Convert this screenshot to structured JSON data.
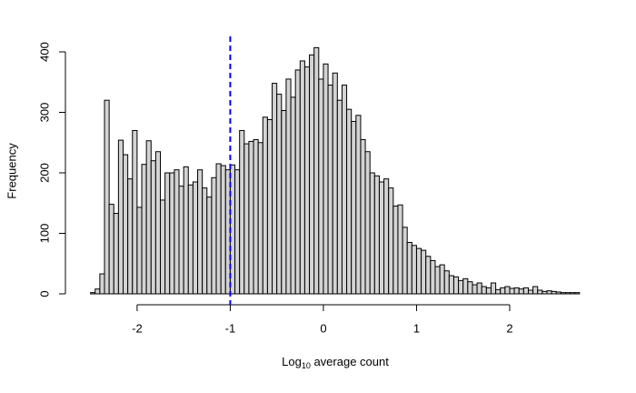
{
  "chart_data": {
    "type": "histogram",
    "xlabel": [
      "Log",
      "10",
      " average count"
    ],
    "ylabel": "Frequency",
    "bins": [
      -2.5,
      -2.45,
      -2.4,
      -2.35,
      -2.3,
      -2.25,
      -2.2,
      -2.15,
      -2.1,
      -2.05,
      -2,
      -1.95,
      -1.9,
      -1.85,
      -1.8,
      -1.75,
      -1.7,
      -1.65,
      -1.6,
      -1.55,
      -1.5,
      -1.45,
      -1.4,
      -1.35,
      -1.3,
      -1.25,
      -1.2,
      -1.15,
      -1.1,
      -1.05,
      -1,
      -0.95,
      -0.9,
      -0.85,
      -0.8,
      -0.75,
      -0.7,
      -0.65,
      -0.6,
      -0.55,
      -0.5,
      -0.45,
      -0.4,
      -0.35,
      -0.3,
      -0.25,
      -0.2,
      -0.15,
      -0.1,
      -0.05,
      0,
      0.05,
      0.1,
      0.15,
      0.2,
      0.25,
      0.3,
      0.35,
      0.4,
      0.45,
      0.5,
      0.55,
      0.6,
      0.65,
      0.7,
      0.75,
      0.8,
      0.85,
      0.9,
      0.95,
      1,
      1.05,
      1.1,
      1.15,
      1.2,
      1.25,
      1.3,
      1.35,
      1.4,
      1.45,
      1.5,
      1.55,
      1.6,
      1.65,
      1.7,
      1.75,
      1.8,
      1.85,
      1.9,
      1.95,
      2,
      2.05,
      2.1,
      2.15,
      2.2,
      2.25,
      2.3,
      2.35,
      2.4,
      2.45,
      2.5,
      2.55,
      2.6,
      2.65,
      2.7,
      2.75
    ],
    "counts": [
      2,
      8,
      33,
      320,
      148,
      133,
      254,
      230,
      190,
      270,
      143,
      214,
      253,
      220,
      235,
      155,
      200,
      200,
      205,
      178,
      210,
      180,
      185,
      205,
      175,
      160,
      192,
      215,
      212,
      205,
      213,
      205,
      270,
      248,
      252,
      255,
      250,
      292,
      288,
      348,
      330,
      303,
      355,
      325,
      370,
      385,
      375,
      395,
      407,
      355,
      380,
      345,
      365,
      320,
      345,
      305,
      285,
      295,
      255,
      235,
      200,
      195,
      185,
      190,
      175,
      145,
      147,
      110,
      85,
      80,
      75,
      72,
      62,
      55,
      45,
      48,
      38,
      30,
      28,
      22,
      25,
      20,
      15,
      18,
      12,
      10,
      18,
      7,
      10,
      12,
      9,
      10,
      8,
      10,
      6,
      12,
      6,
      4,
      5,
      4,
      3,
      2,
      2,
      2,
      2
    ],
    "color": "#d3d3d3",
    "xlim": [
      -2.75,
      3.0
    ],
    "ylim": [
      0,
      420
    ],
    "xticks": [
      -2,
      -1,
      0,
      1,
      2
    ],
    "yticks": [
      0,
      100,
      200,
      300,
      400
    ],
    "vlines": [
      {
        "x": -1,
        "color": "#0000ff"
      }
    ]
  }
}
